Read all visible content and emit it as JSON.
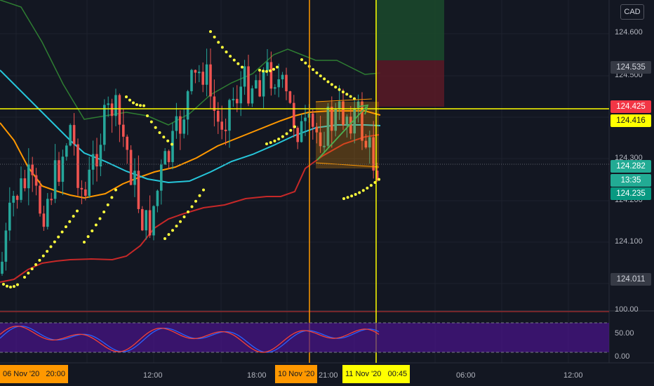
{
  "currency": "CAD",
  "price_axis": {
    "labels": [
      "124.600",
      "124.500",
      "124.300",
      "124.200",
      "124.100"
    ]
  },
  "price_tags": [
    {
      "name": "price-tag-124535",
      "value": "124.535",
      "bg": "#363a45",
      "fg": "#d1d4dc"
    },
    {
      "name": "price-tag-124425",
      "value": "124.425",
      "bg": "#f23645",
      "fg": "#ffffff"
    },
    {
      "name": "price-tag-124416",
      "value": "124.416",
      "bg": "#ffff00",
      "fg": "#131722"
    },
    {
      "name": "price-tag-124282",
      "value": "124.282",
      "bg": "#22ab94",
      "fg": "#ffffff"
    },
    {
      "name": "countdown-tag",
      "value": "13:35",
      "bg": "#22ab94",
      "fg": "#ffffff"
    },
    {
      "name": "price-tag-124235",
      "value": "124.235",
      "bg": "#089981",
      "fg": "#ffffff"
    },
    {
      "name": "price-tag-124011",
      "value": "124.011",
      "bg": "#363a45",
      "fg": "#d1d4dc"
    }
  ],
  "oscillator_axis": {
    "labels": [
      "100.00",
      "50.00",
      "0.00"
    ]
  },
  "time_axis": {
    "labels": [
      "12:00",
      "18:00",
      "21:00",
      "06:00",
      "12:00"
    ]
  },
  "time_tags": [
    {
      "name": "time-tag-start",
      "value": "06 Nov '20   20:00",
      "bg": "#ff9800"
    },
    {
      "name": "time-tag-orange-line",
      "value": "10 Nov '20",
      "bg": "#ff9800"
    },
    {
      "name": "time-tag-yellow-line",
      "value": "11 Nov '20   00:45",
      "bg": "#ffff00"
    }
  ],
  "colors": {
    "background": "#131722",
    "bull_candle": "#26a69a",
    "bear_candle": "#ef5350",
    "ma_red": "#c62828",
    "ma_orange": "#ff9800",
    "ma_cyan": "#26c6da",
    "ma_green": "#2e7d32",
    "parabolic_sar": "#ffff3b",
    "horizontal_line": "#ffff00",
    "orange_vline": "#ff9800",
    "yellow_vline": "#ffff00",
    "stoch_k": "#2962ff",
    "stoch_d": "#f44336",
    "stoch_band": "#4a148c",
    "trendline": "#4caf50"
  },
  "icons": {
    "currency_badge": "currency-badge"
  }
}
